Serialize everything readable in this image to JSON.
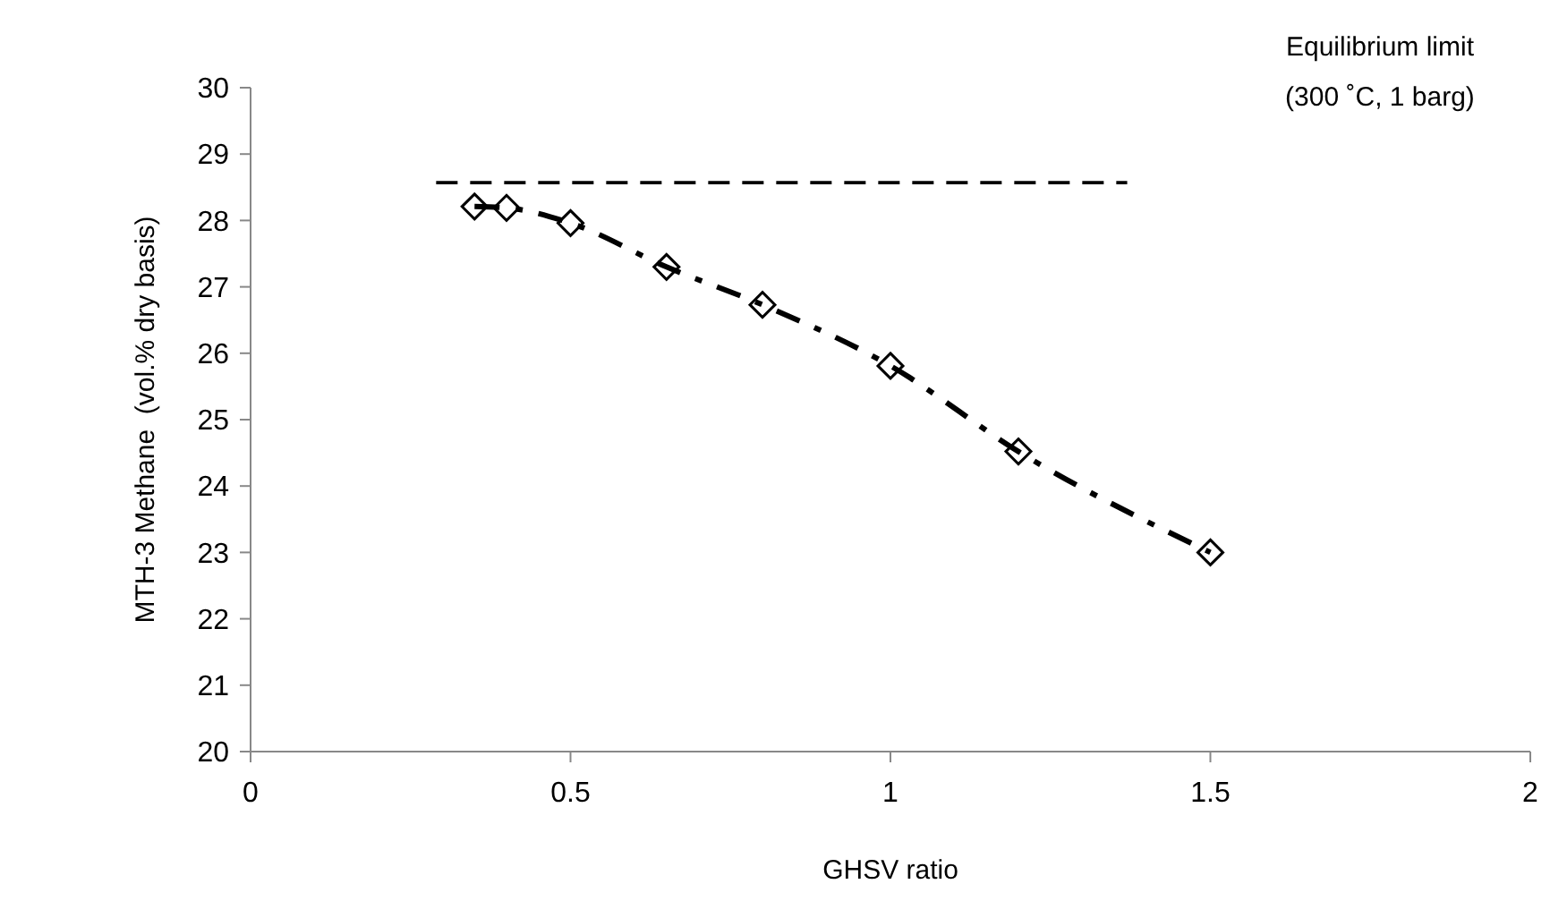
{
  "chart_data": {
    "type": "scatter",
    "xlabel": "GHSV ratio",
    "ylabel": "MTH-3 Methane  (vol.% dry basis)",
    "xlim": [
      0,
      2
    ],
    "ylim": [
      20,
      30
    ],
    "xticks": [
      0,
      0.5,
      1,
      1.5,
      2
    ],
    "yticks": [
      20,
      21,
      22,
      23,
      24,
      25,
      26,
      27,
      28,
      29,
      30
    ],
    "annotations": [
      "Equilibrium limit",
      "(300 ˚C, 1 barg)"
    ],
    "series": [
      {
        "color": "#000000",
        "marker": "diamond",
        "x": [
          0.35,
          0.4,
          0.5,
          0.65,
          0.8,
          1.0,
          1.2,
          1.5
        ],
        "values": [
          28.21,
          28.19,
          27.96,
          27.3,
          26.73,
          25.81,
          24.52,
          23.0
        ]
      },
      {
        "type": "line",
        "color": "#000000",
        "line_style": "dashdot",
        "x": [
          0.35,
          0.4,
          0.5,
          0.65,
          0.8,
          1.0,
          1.2,
          1.5
        ],
        "values": [
          28.21,
          28.19,
          27.96,
          27.3,
          26.73,
          25.81,
          24.52,
          23.0
        ]
      },
      {
        "type": "line",
        "color": "#000000",
        "line_style": "dashed",
        "x": [
          0.29,
          1.37
        ],
        "values": [
          28.57,
          28.57
        ]
      }
    ]
  }
}
